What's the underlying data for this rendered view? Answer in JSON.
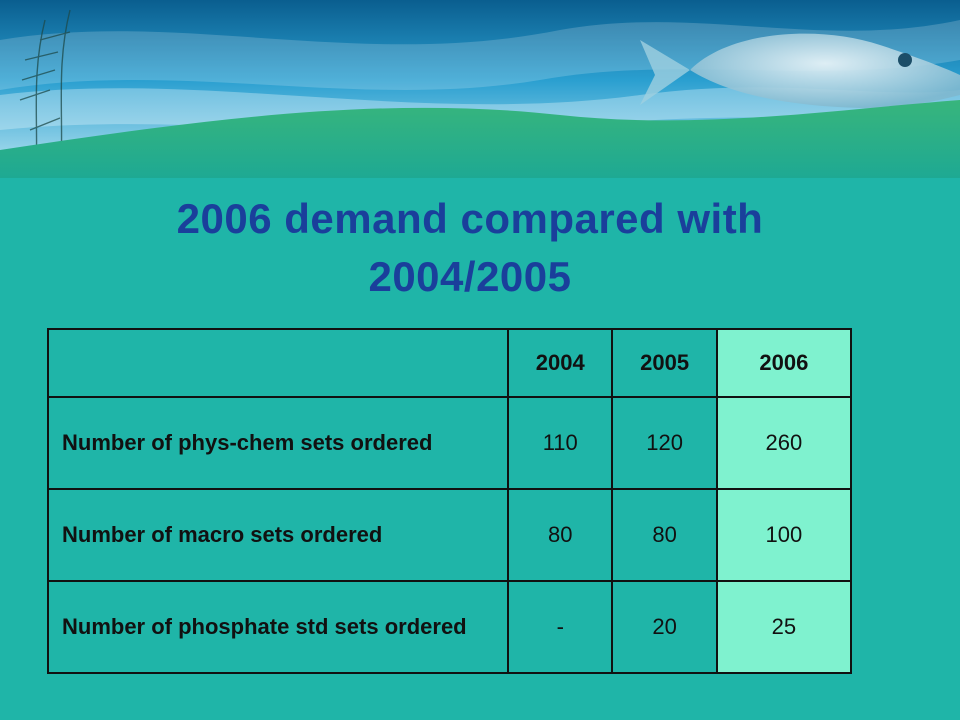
{
  "slide": {
    "title_line1": "2006 demand compared with",
    "title_line2": "2004/2005"
  },
  "table": {
    "headers": [
      "",
      "2004",
      "2005",
      "2006"
    ],
    "rows": [
      {
        "label": "Number of phys-chem sets ordered",
        "values": [
          "110",
          "120",
          "260"
        ]
      },
      {
        "label": "Number of macro sets ordered",
        "values": [
          "80",
          "80",
          "100"
        ]
      },
      {
        "label": "Number of phosphate std sets ordered",
        "values": [
          "-",
          "20",
          "25"
        ]
      }
    ]
  },
  "colors": {
    "background": "#1fb5a8",
    "title": "#1a3f9b",
    "highlight_column": "#7ff2cf",
    "banner_sea": "#0a7fb0",
    "banner_wave": "#2fae7e"
  }
}
